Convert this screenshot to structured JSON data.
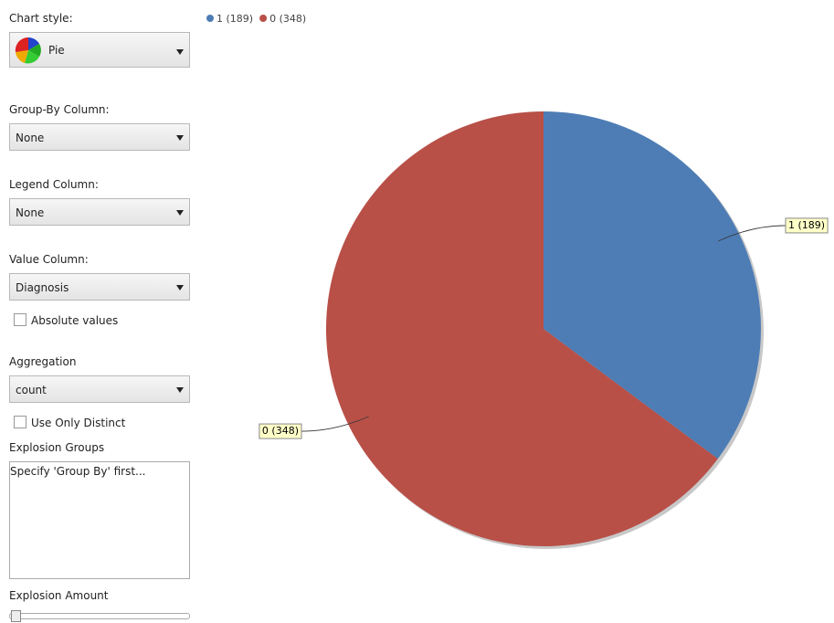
{
  "panel": {
    "chart_style_label": "Chart style:",
    "chart_style": "Pie",
    "group_by_label": "Group-By Column:",
    "group_by": "None",
    "legend_column_label": "Legend Column:",
    "legend_column": "None",
    "value_column_label": "Value Column:",
    "value_column": "Diagnosis",
    "absolute_values": "Absolute values",
    "aggregation_label": "Aggregation",
    "aggregation": "count",
    "distinct": "Use Only Distinct",
    "explosion_groups_label": "Explosion Groups",
    "explosion_groups_hint": "Specify 'Group By' first...",
    "explosion_amount_label": "Explosion Amount"
  },
  "chart_data": {
    "type": "pie",
    "categories": [
      "1 (189)",
      "0 (348)"
    ],
    "values": [
      189,
      348
    ],
    "colors": [
      "#4e7db5",
      "#b85048"
    ]
  }
}
